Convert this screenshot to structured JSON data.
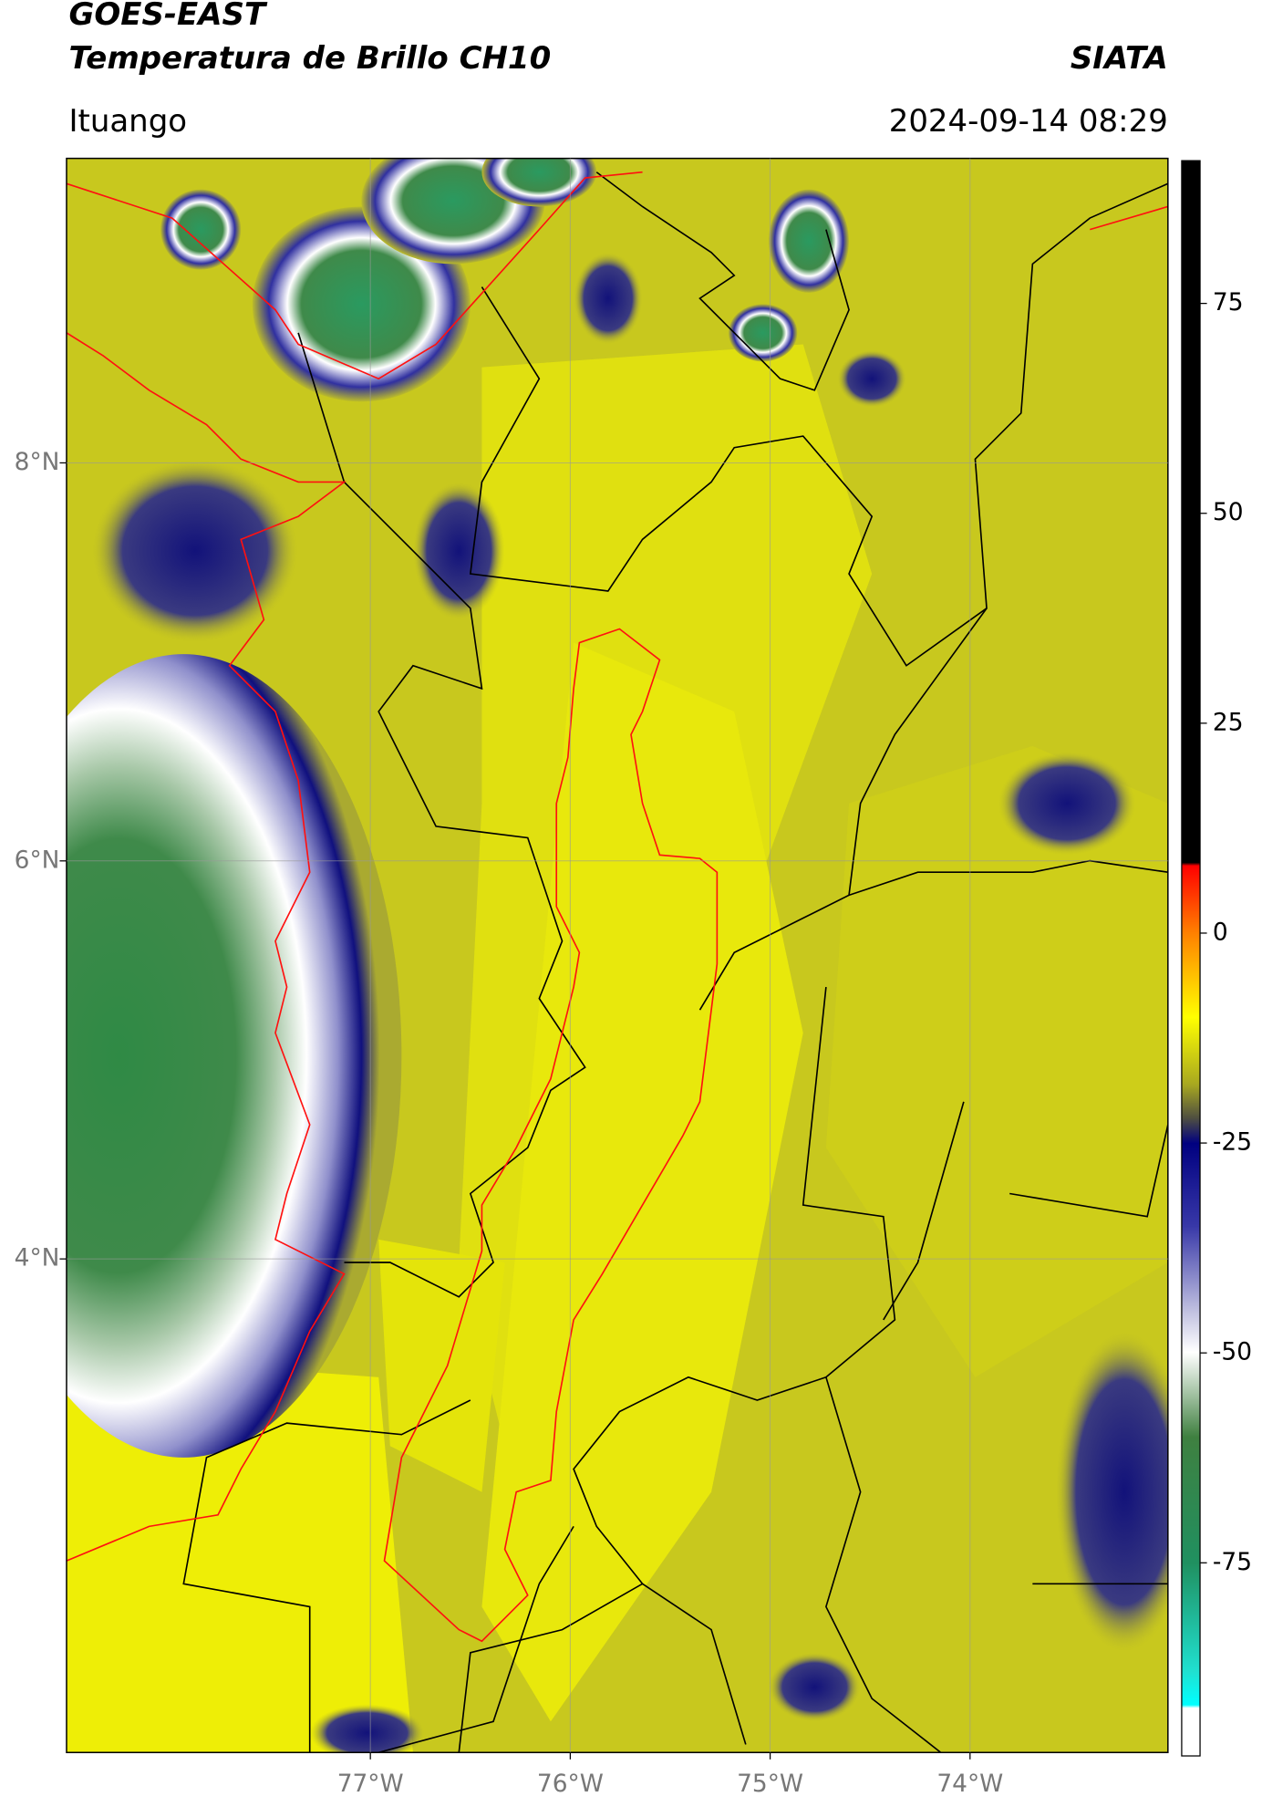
{
  "header": {
    "title": "GOES-EAST",
    "subtitle": "Temperatura de Brillo CH10",
    "org": "SIATA",
    "place": "Ituango",
    "datetime": "2024-09-14 08:29"
  },
  "map": {
    "xlim": [
      -78.52,
      -73.01
    ],
    "ylim": [
      1.52,
      9.53
    ],
    "xticks": [
      {
        "value": -77,
        "label": "77°W"
      },
      {
        "value": -76,
        "label": "76°W"
      },
      {
        "value": -75,
        "label": "75°W"
      },
      {
        "value": -74,
        "label": "74°W"
      }
    ],
    "yticks": [
      {
        "value": 8,
        "label": "8°N"
      },
      {
        "value": 6,
        "label": "6°N"
      },
      {
        "value": 4,
        "label": "4°N"
      }
    ],
    "grid": true
  },
  "colorbar": {
    "lim": [
      -98,
      92
    ],
    "ticks": [
      75,
      50,
      25,
      0,
      -25,
      -50,
      -75
    ]
  }
}
